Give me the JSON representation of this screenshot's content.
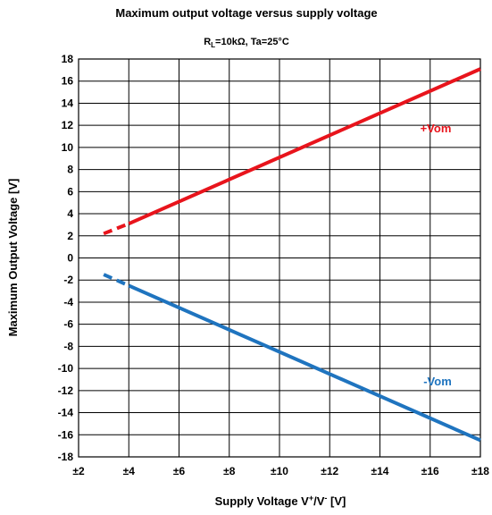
{
  "chart_data": {
    "type": "line",
    "title": "Maximum output voltage versus supply voltage",
    "subtitle": {
      "r_symbol": "R",
      "r_subscript": "L",
      "rest": "=10kΩ, Ta=25°C"
    },
    "xlabel": {
      "prefix": "Supply Voltage V",
      "sup_plus": "+",
      "slash": "/V",
      "sup_minus": "-",
      "suffix": " [V]"
    },
    "ylabel": "Maximum Output Voltage [V]",
    "xlim": [
      2,
      18
    ],
    "ylim": [
      -18,
      18
    ],
    "x_ticks": [
      2,
      4,
      6,
      8,
      10,
      12,
      14,
      16,
      18
    ],
    "x_tick_labels": [
      "±2",
      "±4",
      "±6",
      "±8",
      "±10",
      "±12",
      "±14",
      "±16",
      "±18"
    ],
    "y_ticks": [
      -18,
      -16,
      -14,
      -12,
      -10,
      -8,
      -6,
      -4,
      -2,
      0,
      2,
      4,
      6,
      8,
      10,
      12,
      14,
      16,
      18
    ],
    "y_tick_labels": [
      "-18",
      "-16",
      "-14",
      "-12",
      "-10",
      "-8",
      "-6",
      "-4",
      "-2",
      "0",
      "2",
      "4",
      "6",
      "8",
      "10",
      "12",
      "14",
      "16",
      "18"
    ],
    "grid": true,
    "series": [
      {
        "name": "+Vom",
        "color": "#e8141c",
        "dashed_segment": {
          "x": [
            3,
            4
          ],
          "y": [
            2.2,
            3.1
          ]
        },
        "solid_segment": {
          "x": [
            4,
            18
          ],
          "y": [
            3.1,
            17.1
          ]
        }
      },
      {
        "name": "-Vom",
        "color": "#1f74bf",
        "dashed_segment": {
          "x": [
            3,
            4
          ],
          "y": [
            -1.5,
            -2.5
          ]
        },
        "solid_segment": {
          "x": [
            4,
            18
          ],
          "y": [
            -2.5,
            -16.5
          ]
        }
      }
    ]
  }
}
